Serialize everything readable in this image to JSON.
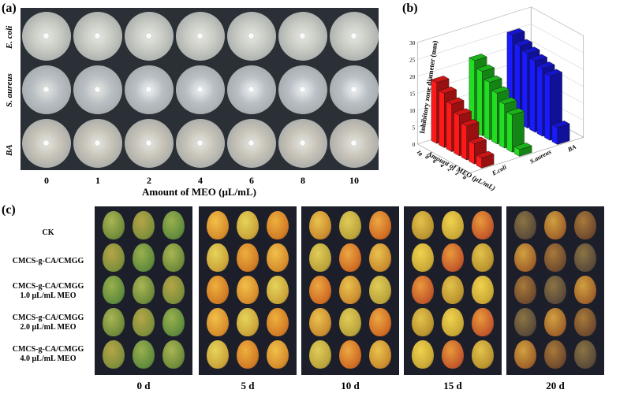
{
  "panel_a": {
    "label": "(a)",
    "row_labels": [
      "E. coli",
      "S. aureus",
      "BA"
    ],
    "doses": [
      "0",
      "1",
      "2",
      "4",
      "6",
      "8",
      "10"
    ],
    "x_axis_title": "Amount of MEO (μL/mL)"
  },
  "panel_b": {
    "label": "(b)",
    "chart_data": {
      "type": "bar",
      "title": "",
      "zlabel": "Inhibitory zone diameter (mm)",
      "xlabel": "Amount of MEO (μL/mL)",
      "categories": [
        "10",
        "8",
        "6",
        "4",
        "2",
        "1",
        "0"
      ],
      "z_ticks": [
        "0",
        "5",
        "10",
        "15",
        "20",
        "25",
        "30"
      ],
      "zlim": [
        0,
        30
      ],
      "series": [
        {
          "name": "E.coli",
          "color": "#ff1a1a",
          "values": [
            18,
            16,
            14,
            12,
            10,
            6,
            3
          ]
        },
        {
          "name": "S.aureus",
          "color": "#22dd22",
          "values": [
            21,
            19,
            17,
            15,
            13,
            11,
            2
          ]
        },
        {
          "name": "BA",
          "color": "#1a1aff",
          "values": [
            25,
            23,
            22,
            21,
            20,
            19,
            5
          ]
        }
      ]
    }
  },
  "panel_c": {
    "label": "(c)",
    "treatments": [
      {
        "line1": "CK",
        "line2": ""
      },
      {
        "line1": "CMCS-g-CA/CMGG",
        "line2": ""
      },
      {
        "line1": "CMCS-g-CA/CMGG",
        "line2": "1.0 μL/mL MEO"
      },
      {
        "line1": "CMCS-g-CA/CMGG",
        "line2": "2.0 μL/mL MEO"
      },
      {
        "line1": "CMCS-g-CA/CMGG",
        "line2": "4.0 μL/mL MEO"
      }
    ],
    "days": [
      "0 d",
      "5 d",
      "10 d",
      "15 d",
      "20 d"
    ]
  },
  "colors": {
    "plate_bg": "#2b2f36",
    "fruit_bg": "#1c1f2a"
  }
}
